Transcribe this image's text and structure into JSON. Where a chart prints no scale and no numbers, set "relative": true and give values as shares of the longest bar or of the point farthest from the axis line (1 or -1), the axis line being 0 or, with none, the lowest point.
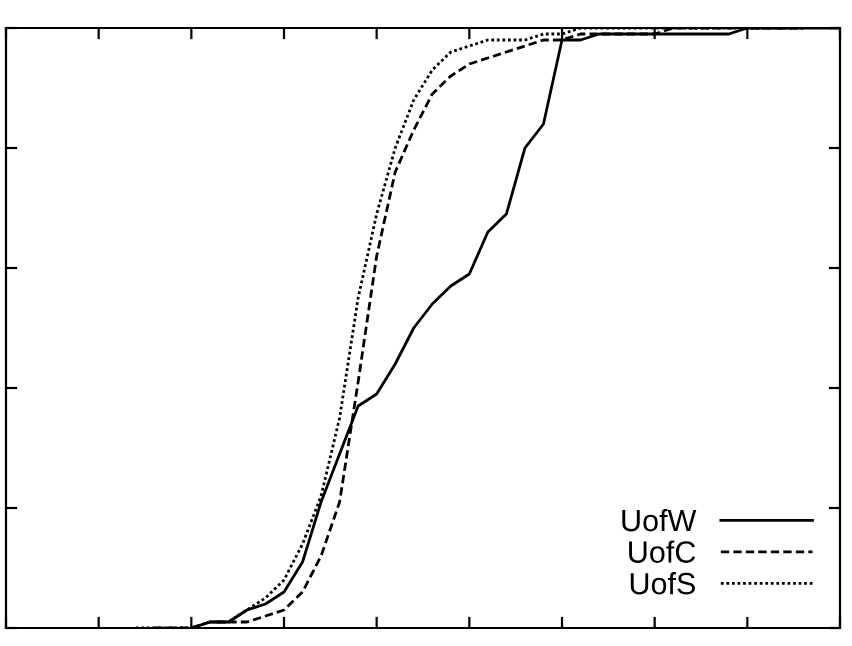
{
  "chart_data": {
    "type": "line",
    "relative": true,
    "legend": "bottom right",
    "grid": false,
    "categories": [
      null,
      null,
      null,
      null,
      null,
      null,
      null,
      null,
      null,
      null,
      null,
      null,
      null,
      null,
      null,
      null,
      null,
      null,
      null,
      null,
      null,
      null,
      null,
      null,
      null,
      null,
      null,
      null,
      null,
      null,
      null,
      null,
      null,
      null,
      null,
      null,
      null,
      null,
      null,
      null,
      null,
      null,
      null,
      null,
      null,
      null
    ],
    "series": [
      {
        "name": "UofW",
        "color": "#000000",
        "line_style": "solid",
        "values": [
          null,
          null,
          null,
          null,
          null,
          null,
          null,
          null,
          null,
          null,
          0.0,
          0.01,
          0.01,
          0.03,
          0.04,
          0.06,
          0.11,
          0.21,
          0.29,
          0.37,
          0.39,
          0.44,
          0.5,
          0.54,
          0.57,
          0.59,
          0.66,
          0.69,
          0.8,
          0.84,
          0.98,
          0.98,
          0.99,
          0.99,
          0.99,
          0.99,
          0.99,
          0.99,
          0.99,
          0.99,
          1.0,
          1.0,
          1.0,
          1.0,
          1.0,
          1.0
        ]
      },
      {
        "name": "UofC",
        "color": "#000000",
        "line_style": "dashed",
        "values": [
          null,
          null,
          null,
          null,
          null,
          null,
          null,
          null,
          0.0,
          0.0,
          0.0,
          0.01,
          0.01,
          0.01,
          0.02,
          0.03,
          0.06,
          0.12,
          0.21,
          0.41,
          0.62,
          0.76,
          0.83,
          0.89,
          0.92,
          0.94,
          0.95,
          0.96,
          0.97,
          0.98,
          0.98,
          0.99,
          0.99,
          0.99,
          0.99,
          0.99,
          1.0,
          1.0,
          1.0,
          1.0,
          1.0,
          1.0,
          1.0,
          1.0,
          null,
          null
        ]
      },
      {
        "name": "UofS",
        "color": "#000000",
        "line_style": "dotted",
        "values": [
          null,
          null,
          null,
          null,
          null,
          null,
          null,
          0.0,
          0.0,
          0.0,
          0.0,
          0.01,
          0.01,
          0.03,
          0.05,
          0.08,
          0.14,
          0.22,
          0.35,
          0.55,
          0.69,
          0.8,
          0.88,
          0.93,
          0.96,
          0.97,
          0.98,
          0.98,
          0.98,
          0.99,
          0.99,
          1.0,
          1.0,
          1.0,
          1.0,
          1.0,
          1.0,
          1.0,
          1.0,
          1.0,
          1.0,
          1.0,
          1.0,
          1.0,
          null,
          null
        ]
      }
    ]
  }
}
